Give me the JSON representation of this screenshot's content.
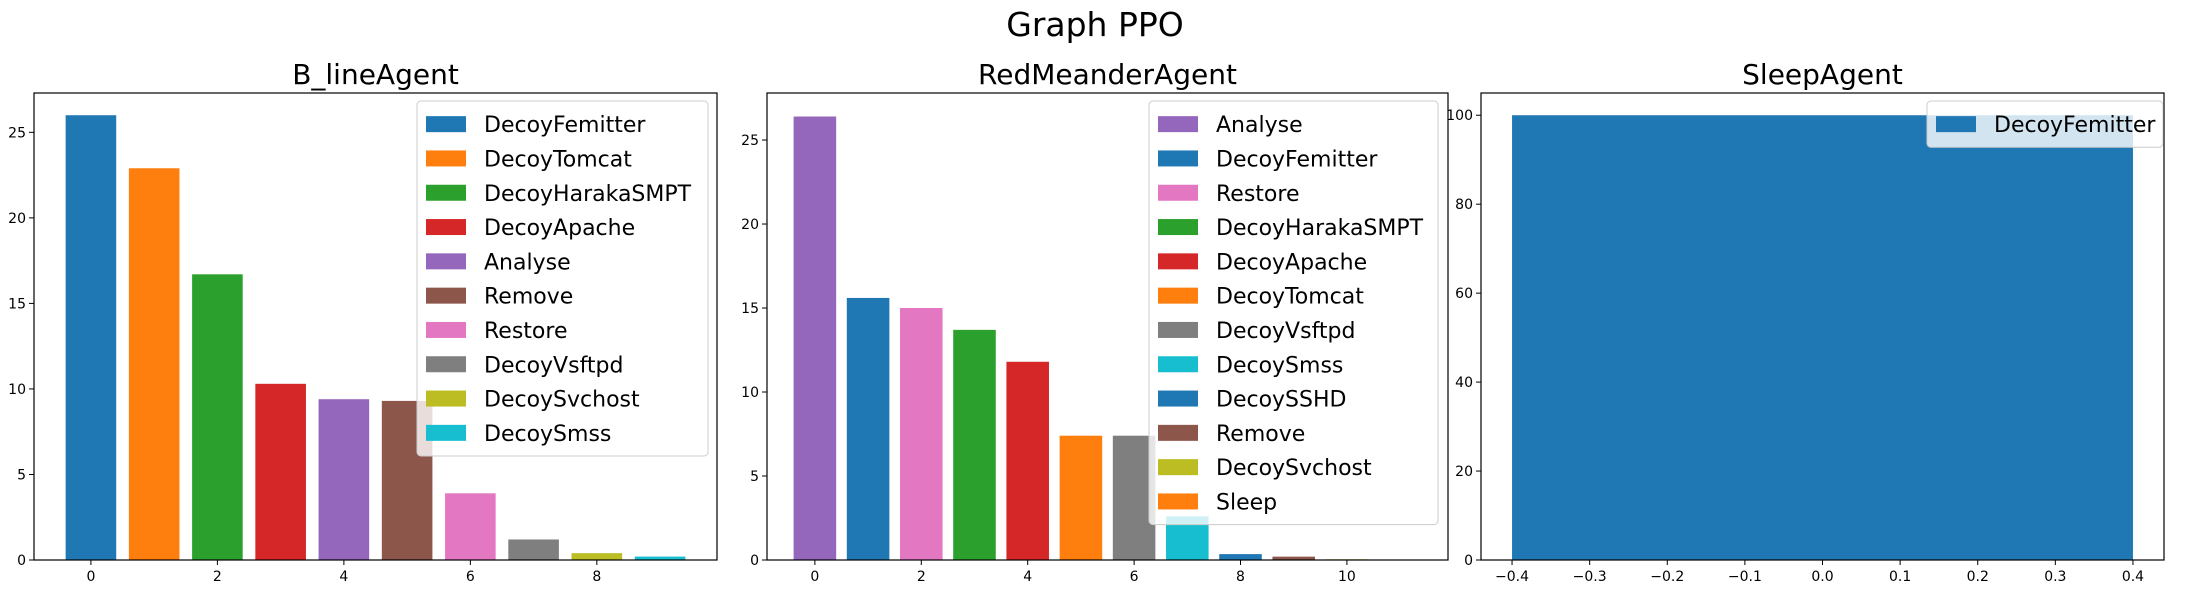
{
  "figure_title": "Graph PPO",
  "chart_data": [
    {
      "type": "bar",
      "title": "B_lineAgent",
      "xlabel": "",
      "ylabel": "",
      "x": [
        0,
        1,
        2,
        3,
        4,
        5,
        6,
        7,
        8,
        9
      ],
      "values": [
        26.0,
        22.9,
        16.7,
        10.3,
        9.4,
        9.3,
        3.9,
        1.2,
        0.4,
        0.2
      ],
      "bar_width": 0.8,
      "colors": [
        "#1f77b4",
        "#ff7f0e",
        "#2ca02c",
        "#d62728",
        "#9467bd",
        "#8c564b",
        "#e377c2",
        "#7f7f7f",
        "#bcbd22",
        "#17becf"
      ],
      "labels": [
        "DecoyFemitter",
        "DecoyTomcat",
        "DecoyHarakaSMPT",
        "DecoyApache",
        "Analyse",
        "Remove",
        "Restore",
        "DecoyVsftpd",
        "DecoySvchost",
        "DecoySmss"
      ],
      "xlim": [
        -0.9,
        9.9
      ],
      "ylim": [
        0,
        27.3
      ],
      "xticks": [
        0,
        2,
        4,
        6,
        8
      ],
      "xtick_labels": [
        "0",
        "2",
        "4",
        "6",
        "8"
      ],
      "yticks": [
        0,
        5,
        10,
        15,
        20,
        25
      ],
      "ytick_labels": [
        "0",
        "5",
        "10",
        "15",
        "20",
        "25"
      ],
      "grid": false,
      "legend_position": "upper right"
    },
    {
      "type": "bar",
      "title": "RedMeanderAgent",
      "xlabel": "",
      "ylabel": "",
      "x": [
        0,
        1,
        2,
        3,
        4,
        5,
        6,
        7,
        8,
        9,
        10,
        11
      ],
      "values": [
        26.4,
        15.6,
        15.0,
        13.7,
        11.8,
        7.4,
        7.4,
        2.6,
        0.35,
        0.2,
        0.04,
        0.02
      ],
      "bar_width": 0.8,
      "colors": [
        "#9467bd",
        "#1f77b4",
        "#e377c2",
        "#2ca02c",
        "#d62728",
        "#ff7f0e",
        "#7f7f7f",
        "#17becf",
        "#1f77b4",
        "#8c564b",
        "#bcbd22",
        "#ff7f0e"
      ],
      "labels": [
        "Analyse",
        "DecoyFemitter",
        "Restore",
        "DecoyHarakaSMPT",
        "DecoyApache",
        "DecoyTomcat",
        "DecoyVsftpd",
        "DecoySmss",
        "DecoySSHD",
        "Remove",
        "DecoySvchost",
        "Sleep"
      ],
      "xlim": [
        -0.9,
        11.9
      ],
      "ylim": [
        0,
        27.8
      ],
      "xticks": [
        0,
        2,
        4,
        6,
        8,
        10
      ],
      "xtick_labels": [
        "0",
        "2",
        "4",
        "6",
        "8",
        "10"
      ],
      "yticks": [
        0,
        5,
        10,
        15,
        20,
        25
      ],
      "ytick_labels": [
        "0",
        "5",
        "10",
        "15",
        "20",
        "25"
      ],
      "grid": false,
      "legend_position": "upper right"
    },
    {
      "type": "bar",
      "title": "SleepAgent",
      "xlabel": "",
      "ylabel": "",
      "x": [
        0
      ],
      "values": [
        100
      ],
      "bar_width": 0.8,
      "colors": [
        "#1f77b4"
      ],
      "labels": [
        "DecoyFemitter"
      ],
      "xlim": [
        -0.44,
        0.44
      ],
      "ylim": [
        0,
        105
      ],
      "xticks": [
        -0.4,
        -0.3,
        -0.2,
        -0.1,
        0.0,
        0.1,
        0.2,
        0.3,
        0.4
      ],
      "xtick_labels": [
        "−0.4",
        "−0.3",
        "−0.2",
        "−0.1",
        "0.0",
        "0.1",
        "0.2",
        "0.3",
        "0.4"
      ],
      "yticks": [
        0,
        20,
        40,
        60,
        80,
        100
      ],
      "ytick_labels": [
        "0",
        "20",
        "40",
        "60",
        "80",
        "100"
      ],
      "grid": false,
      "legend_position": "upper right"
    }
  ]
}
